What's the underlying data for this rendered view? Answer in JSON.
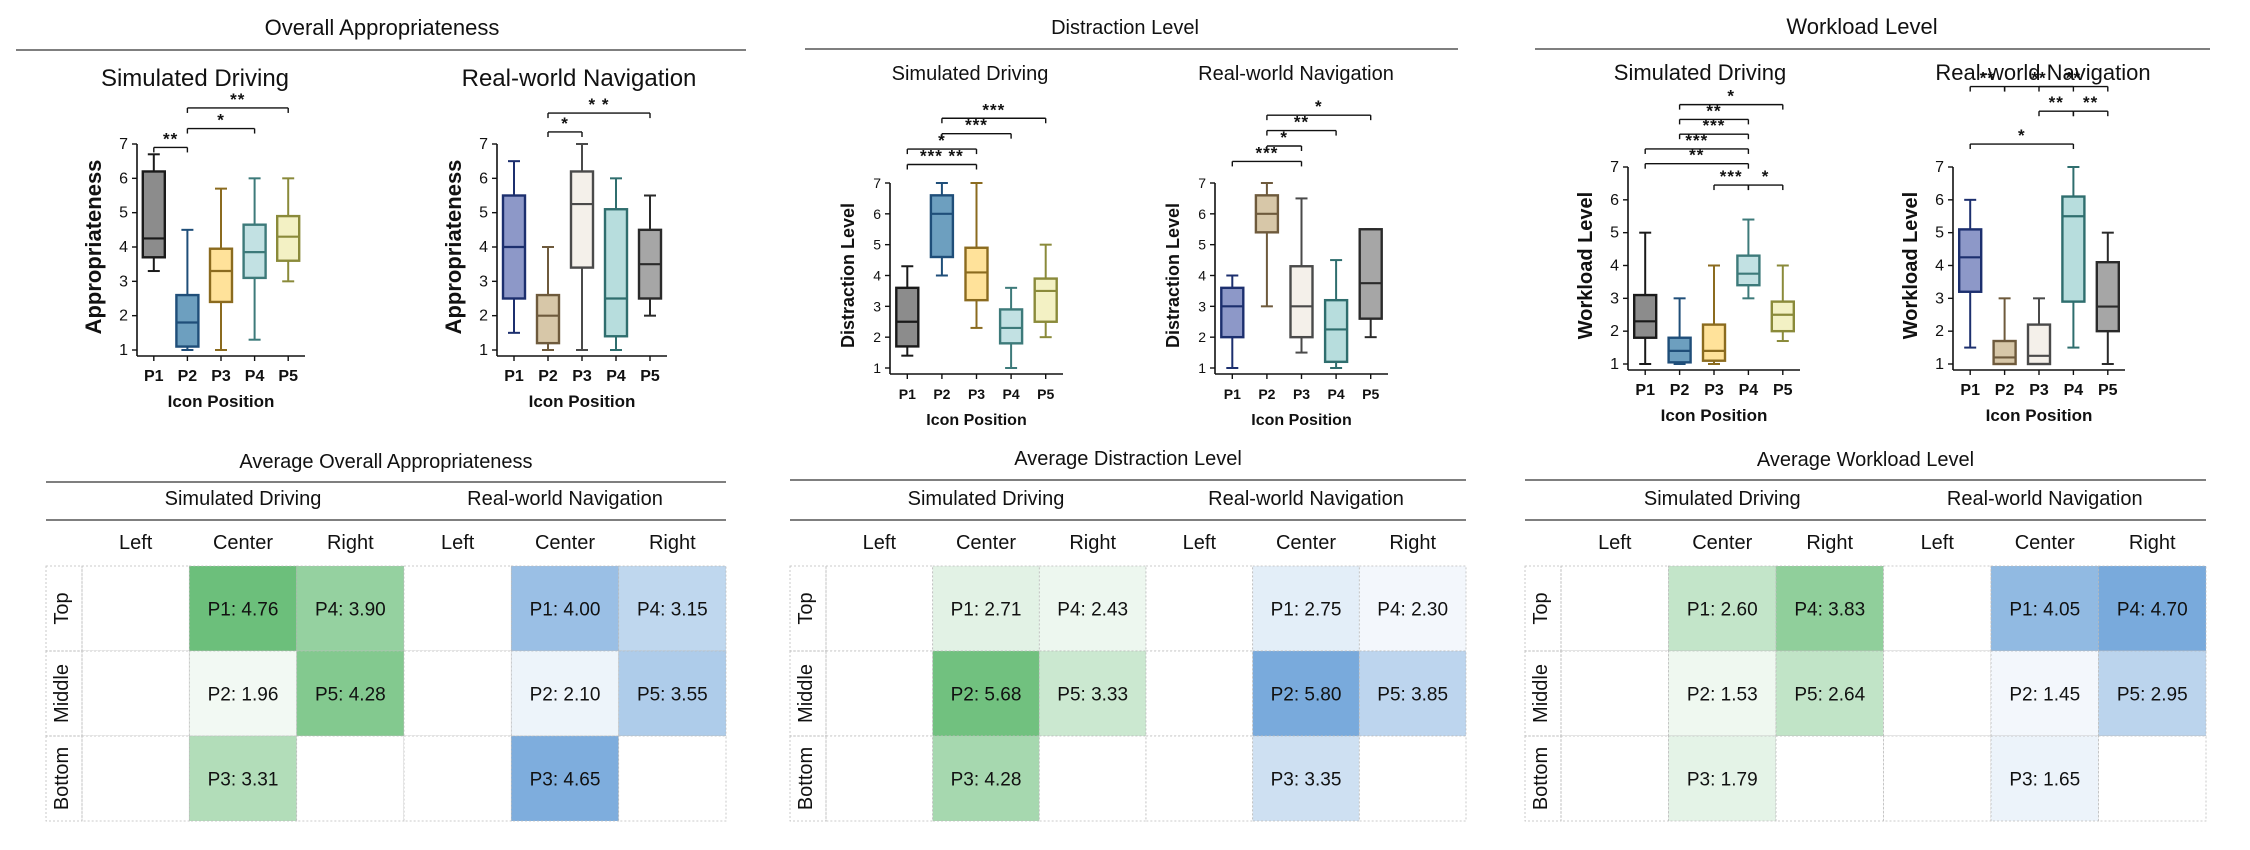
{
  "panels": [
    {
      "title": "Overall Appropriateness",
      "ylabel": "Appropriateness",
      "table_title": "Average Overall Appropriateness"
    },
    {
      "title": "Distraction Level",
      "ylabel": "Distraction Level",
      "table_title": "Average Distraction Level"
    },
    {
      "title": "Workload Level",
      "ylabel": "Workload Level",
      "table_title": "Average Workload Level"
    }
  ],
  "labels": {
    "simulated": "Simulated Driving",
    "real": "Real-world Navigation",
    "xlabel": "Icon Position",
    "cols": [
      "Left",
      "Center",
      "Right"
    ],
    "rows": [
      "Top",
      "Middle",
      "Bottom"
    ]
  },
  "colors": {
    "P1": "#8d98c8",
    "P2": "#d7c7a8",
    "P3": "#f4f0ea",
    "P4": "#b7dddd",
    "P5": "#a6a6a6",
    "sim_edges": [
      "#1a1a1a",
      "#1f4e79",
      "#8b6b1f",
      "#3d7a7a",
      "#8a8a3a"
    ],
    "sim_fills": [
      "#8c8c8c",
      "#6d9fbf",
      "#ffe29a",
      "#c2e1e3",
      "#f3f1c4"
    ],
    "real_edges": [
      "#1c2f6e",
      "#6e5a3c",
      "#4a4a4a",
      "#2f6e6e",
      "#2a2a2a"
    ],
    "real_fills": [
      "#8d98c8",
      "#d7c7a8",
      "#f4f0ea",
      "#b7dddd",
      "#a6a6a6"
    ],
    "green_hi": "#5cb86c",
    "blue_hi": "#6aa1d8"
  },
  "chart_data": [
    {
      "type": "boxplot",
      "title": "Simulated Driving",
      "panel": "Overall Appropriateness",
      "categories": [
        "P1",
        "P2",
        "P3",
        "P4",
        "P5"
      ],
      "ylabel": "Appropriateness",
      "xlabel": "Icon Position",
      "ylim": [
        1,
        7
      ],
      "yticks": [
        1,
        2,
        3,
        4,
        5,
        6,
        7
      ],
      "boxes": [
        {
          "min": 3.3,
          "q1": 3.7,
          "median": 4.25,
          "q3": 6.2,
          "max": 6.7
        },
        {
          "min": 1.0,
          "q1": 1.1,
          "median": 1.8,
          "q3": 2.6,
          "max": 4.5
        },
        {
          "min": 1.0,
          "q1": 2.4,
          "median": 3.3,
          "q3": 3.95,
          "max": 5.7
        },
        {
          "min": 1.3,
          "q1": 3.1,
          "median": 3.85,
          "q3": 4.65,
          "max": 6.0
        },
        {
          "min": 3.0,
          "q1": 3.6,
          "median": 4.3,
          "q3": 4.9,
          "max": 6.0
        }
      ],
      "significance": [
        {
          "from": "P1",
          "to": "P2",
          "label": "**"
        },
        {
          "from": "P2",
          "to": "P4",
          "label": "*"
        },
        {
          "from": "P2",
          "to": "P5",
          "label": "**"
        }
      ]
    },
    {
      "type": "boxplot",
      "title": "Real-world Navigation",
      "panel": "Overall Appropriateness",
      "categories": [
        "P1",
        "P2",
        "P3",
        "P4",
        "P5"
      ],
      "ylabel": "Appropriateness",
      "xlabel": "Icon Position",
      "ylim": [
        1,
        7
      ],
      "yticks": [
        1,
        2,
        3,
        4,
        5,
        6,
        7
      ],
      "boxes": [
        {
          "min": 1.5,
          "q1": 2.5,
          "median": 4.0,
          "q3": 5.5,
          "max": 6.5
        },
        {
          "min": 1.0,
          "q1": 1.2,
          "median": 2.0,
          "q3": 2.6,
          "max": 4.0
        },
        {
          "min": 1.0,
          "q1": 3.4,
          "median": 5.25,
          "q3": 6.2,
          "max": 7.0
        },
        {
          "min": 1.0,
          "q1": 1.4,
          "median": 2.5,
          "q3": 5.1,
          "max": 6.0
        },
        {
          "min": 2.0,
          "q1": 2.5,
          "median": 3.5,
          "q3": 4.5,
          "max": 5.5
        }
      ],
      "significance": [
        {
          "from": "P2",
          "to": "P3",
          "label": "*"
        },
        {
          "from": "P2",
          "to": "P5",
          "label": "* *"
        }
      ]
    },
    {
      "type": "boxplot",
      "title": "Simulated Driving",
      "panel": "Distraction Level",
      "categories": [
        "P1",
        "P2",
        "P3",
        "P4",
        "P5"
      ],
      "ylabel": "Distraction Level",
      "xlabel": "Icon Position",
      "ylim": [
        1,
        7
      ],
      "yticks": [
        1,
        2,
        3,
        4,
        5,
        6,
        7
      ],
      "boxes": [
        {
          "min": 1.4,
          "q1": 1.7,
          "median": 2.5,
          "q3": 3.6,
          "max": 4.3
        },
        {
          "min": 4.0,
          "q1": 4.6,
          "median": 6.0,
          "q3": 6.6,
          "max": 7.0
        },
        {
          "min": 2.3,
          "q1": 3.2,
          "median": 4.1,
          "q3": 4.9,
          "max": 7.0
        },
        {
          "min": 1.0,
          "q1": 1.8,
          "median": 2.3,
          "q3": 2.9,
          "max": 3.6
        },
        {
          "min": 2.0,
          "q1": 2.5,
          "median": 3.5,
          "q3": 3.9,
          "max": 5.0
        }
      ],
      "significance": [
        {
          "from": "P1",
          "to": "P3",
          "label": "*** **"
        },
        {
          "from": "P1",
          "to": "P3",
          "label": "*"
        },
        {
          "from": "P2",
          "to": "P4",
          "label": "***"
        },
        {
          "from": "P2",
          "to": "P5",
          "label": "***"
        }
      ]
    },
    {
      "type": "boxplot",
      "title": "Real-world Navigation",
      "panel": "Distraction Level",
      "categories": [
        "P1",
        "P2",
        "P3",
        "P4",
        "P5"
      ],
      "ylabel": "Distraction Level",
      "xlabel": "Icon Position",
      "ylim": [
        1,
        7
      ],
      "yticks": [
        1,
        2,
        3,
        4,
        5,
        6,
        7
      ],
      "boxes": [
        {
          "min": 1.0,
          "q1": 2.0,
          "median": 3.0,
          "q3": 3.6,
          "max": 4.0
        },
        {
          "min": 3.0,
          "q1": 5.4,
          "median": 6.0,
          "q3": 6.6,
          "max": 7.0
        },
        {
          "min": 1.5,
          "q1": 2.0,
          "median": 3.0,
          "q3": 4.3,
          "max": 6.5
        },
        {
          "min": 1.0,
          "q1": 1.2,
          "median": 2.25,
          "q3": 3.2,
          "max": 4.5
        },
        {
          "min": 2.0,
          "q1": 2.6,
          "median": 3.75,
          "q3": 5.5,
          "max": 5.5
        }
      ],
      "significance": [
        {
          "from": "P1",
          "to": "P3",
          "label": "***"
        },
        {
          "from": "P2",
          "to": "P3",
          "label": "*"
        },
        {
          "from": "P2",
          "to": "P4",
          "label": "**"
        },
        {
          "from": "P2",
          "to": "P5",
          "label": "*"
        }
      ]
    },
    {
      "type": "boxplot",
      "title": "Simulated Driving",
      "panel": "Workload Level",
      "categories": [
        "P1",
        "P2",
        "P3",
        "P4",
        "P5"
      ],
      "ylabel": "Workload Level",
      "xlabel": "Icon Position",
      "ylim": [
        1,
        7
      ],
      "yticks": [
        1,
        2,
        3,
        4,
        5,
        6,
        7
      ],
      "boxes": [
        {
          "min": 1.0,
          "q1": 1.8,
          "median": 2.3,
          "q3": 3.1,
          "max": 5.0
        },
        {
          "min": 1.0,
          "q1": 1.05,
          "median": 1.4,
          "q3": 1.8,
          "max": 3.0
        },
        {
          "min": 1.0,
          "q1": 1.1,
          "median": 1.4,
          "q3": 2.2,
          "max": 4.0
        },
        {
          "min": 3.0,
          "q1": 3.4,
          "median": 3.75,
          "q3": 4.3,
          "max": 5.4
        },
        {
          "min": 1.7,
          "q1": 2.0,
          "median": 2.5,
          "q3": 2.9,
          "max": 4.0
        }
      ],
      "significance": [
        {
          "from": "P3",
          "to": "P4",
          "label": "***"
        },
        {
          "from": "P4",
          "to": "P5",
          "label": "*"
        },
        {
          "from": "P1",
          "to": "P4",
          "label": "**"
        },
        {
          "from": "P1",
          "to": "P4",
          "label": "***"
        },
        {
          "from": "P2",
          "to": "P4",
          "label": "***"
        },
        {
          "from": "P2",
          "to": "P4",
          "label": "**"
        },
        {
          "from": "P2",
          "to": "P5",
          "label": "*"
        }
      ]
    },
    {
      "type": "boxplot",
      "title": "Real-world Navigation",
      "panel": "Workload Level",
      "categories": [
        "P1",
        "P2",
        "P3",
        "P4",
        "P5"
      ],
      "ylabel": "Workload Level",
      "xlabel": "Icon Position",
      "ylim": [
        1,
        7
      ],
      "yticks": [
        1,
        2,
        3,
        4,
        5,
        6,
        7
      ],
      "boxes": [
        {
          "min": 1.5,
          "q1": 3.2,
          "median": 4.25,
          "q3": 5.1,
          "max": 6.0
        },
        {
          "min": 1.0,
          "q1": 1.0,
          "median": 1.2,
          "q3": 1.7,
          "max": 3.0
        },
        {
          "min": 1.0,
          "q1": 1.0,
          "median": 1.25,
          "q3": 2.2,
          "max": 3.0
        },
        {
          "min": 1.5,
          "q1": 2.9,
          "median": 5.5,
          "q3": 6.1,
          "max": 7.0
        },
        {
          "min": 1.0,
          "q1": 2.0,
          "median": 2.75,
          "q3": 4.1,
          "max": 5.0
        }
      ],
      "significance": [
        {
          "from": "P1",
          "to": "P4",
          "label": "*"
        },
        {
          "from": "P3",
          "to": "P4",
          "label": "**"
        },
        {
          "from": "P4",
          "to": "P5",
          "label": "**"
        },
        {
          "from": "P1",
          "to": "P2",
          "label": "**"
        },
        {
          "from": "P2",
          "to": "P4",
          "label": "**"
        },
        {
          "from": "P3",
          "to": "P5",
          "label": "**"
        }
      ]
    },
    {
      "type": "table",
      "title": "Average Overall Appropriateness",
      "simulated": {
        "cells": [
          [
            null,
            "P1: 4.76",
            "P4: 3.90"
          ],
          [
            null,
            "P2: 1.96",
            "P5: 4.28"
          ],
          [
            null,
            "P3: 3.31",
            null
          ]
        ],
        "values": [
          [
            null,
            4.76,
            3.9
          ],
          [
            null,
            1.96,
            4.28
          ],
          [
            null,
            3.31,
            null
          ]
        ]
      },
      "real": {
        "cells": [
          [
            null,
            "P1: 4.00",
            "P4: 3.15"
          ],
          [
            null,
            "P2: 2.10",
            "P5: 3.55"
          ],
          [
            null,
            "P3: 4.65",
            null
          ]
        ],
        "values": [
          [
            null,
            4.0,
            3.15
          ],
          [
            null,
            2.1,
            3.55
          ],
          [
            null,
            4.65,
            null
          ]
        ]
      }
    },
    {
      "type": "table",
      "title": "Average Distraction Level",
      "simulated": {
        "cells": [
          [
            null,
            "P1: 2.71",
            "P4: 2.43"
          ],
          [
            null,
            "P2: 5.68",
            "P5: 3.33"
          ],
          [
            null,
            "P3: 4.28",
            null
          ]
        ],
        "values": [
          [
            null,
            2.71,
            2.43
          ],
          [
            null,
            5.68,
            3.33
          ],
          [
            null,
            4.28,
            null
          ]
        ]
      },
      "real": {
        "cells": [
          [
            null,
            "P1: 2.75",
            "P4: 2.30"
          ],
          [
            null,
            "P2: 5.80",
            "P5: 3.85"
          ],
          [
            null,
            "P3: 3.35",
            null
          ]
        ],
        "values": [
          [
            null,
            2.75,
            2.3
          ],
          [
            null,
            5.8,
            3.85
          ],
          [
            null,
            3.35,
            null
          ]
        ]
      }
    },
    {
      "type": "table",
      "title": "Average Workload Level",
      "simulated": {
        "cells": [
          [
            null,
            "P1: 2.60",
            "P4: 3.83"
          ],
          [
            null,
            "P2: 1.53",
            "P5: 2.64"
          ],
          [
            null,
            "P3: 1.79",
            null
          ]
        ],
        "values": [
          [
            null,
            2.6,
            3.83
          ],
          [
            null,
            1.53,
            2.64
          ],
          [
            null,
            1.79,
            null
          ]
        ]
      },
      "real": {
        "cells": [
          [
            null,
            "P1: 4.05",
            "P4: 4.70"
          ],
          [
            null,
            "P2: 1.45",
            "P5: 2.95"
          ],
          [
            null,
            "P3: 1.65",
            null
          ]
        ],
        "values": [
          [
            null,
            4.05,
            4.7
          ],
          [
            null,
            1.45,
            2.95
          ],
          [
            null,
            1.65,
            null
          ]
        ]
      }
    }
  ]
}
